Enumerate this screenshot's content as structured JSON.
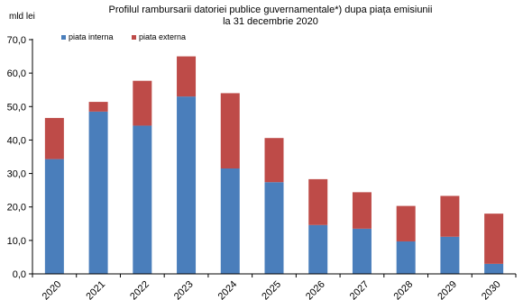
{
  "chart_data": {
    "type": "bar",
    "stacked": true,
    "title_line1": "Profilul  rambursarii datoriei publice guvernamentale*) dupa piața emisiunii",
    "title_line2": "la 31 decembrie 2020",
    "ylabel": "mld lei",
    "xlabel": "",
    "ylim": [
      0,
      70
    ],
    "yticks": [
      "0,0",
      "10,0",
      "20,0",
      "30,0",
      "40,0",
      "50,0",
      "60,0",
      "70,0"
    ],
    "ytick_values": [
      0,
      10,
      20,
      30,
      40,
      50,
      60,
      70
    ],
    "categories": [
      "2020",
      "2021",
      "2022",
      "2023",
      "2024",
      "2025",
      "2026",
      "2027",
      "2028",
      "2029",
      "2030"
    ],
    "legend_position": "top-left",
    "grid": false,
    "series": [
      {
        "name": "piata interna",
        "color": "#4a7ebb",
        "values": [
          34.3,
          48.5,
          44.3,
          53.0,
          31.5,
          27.4,
          14.6,
          13.5,
          9.7,
          11.1,
          3.0
        ]
      },
      {
        "name": "piata externa",
        "color": "#be4b48",
        "values": [
          12.3,
          2.9,
          13.4,
          12.0,
          22.5,
          13.2,
          13.7,
          10.9,
          10.6,
          12.2,
          15.0
        ]
      }
    ]
  }
}
